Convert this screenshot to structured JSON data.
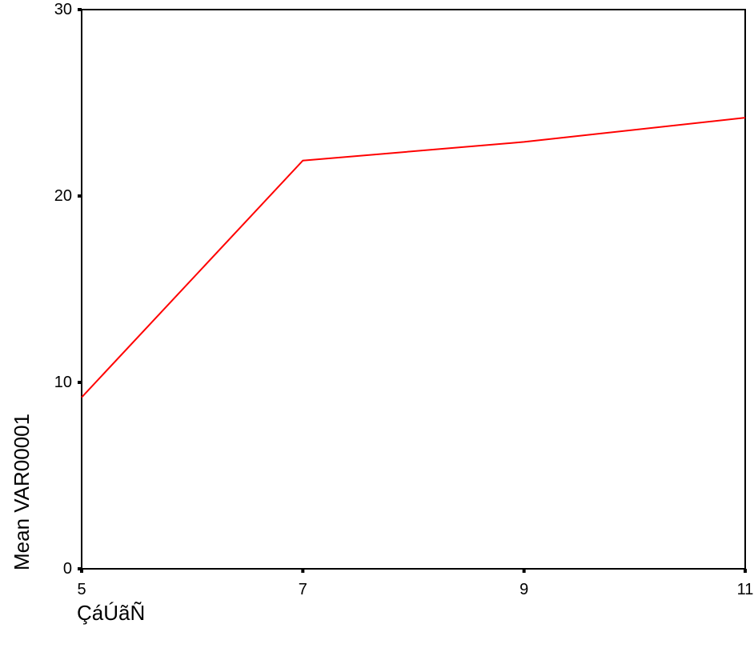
{
  "chart_data": {
    "type": "line",
    "title": "",
    "xlabel": "ÇáÚãÑ",
    "ylabel": "Mean VAR00001",
    "x": [
      5,
      7,
      9,
      11
    ],
    "series": [
      {
        "values": [
          9.2,
          21.9,
          22.9,
          24.2
        ],
        "color": "#ff0000"
      }
    ],
    "xlim": [
      5,
      11
    ],
    "ylim": [
      0,
      30
    ],
    "xticks": [
      5,
      7,
      9,
      11
    ],
    "yticks": [
      0,
      10,
      20,
      30
    ],
    "xtick_labels": [
      "5",
      "7",
      "9",
      "11"
    ],
    "ytick_labels": [
      "0",
      "10",
      "20",
      "30"
    ],
    "grid": false,
    "legend": "none"
  }
}
